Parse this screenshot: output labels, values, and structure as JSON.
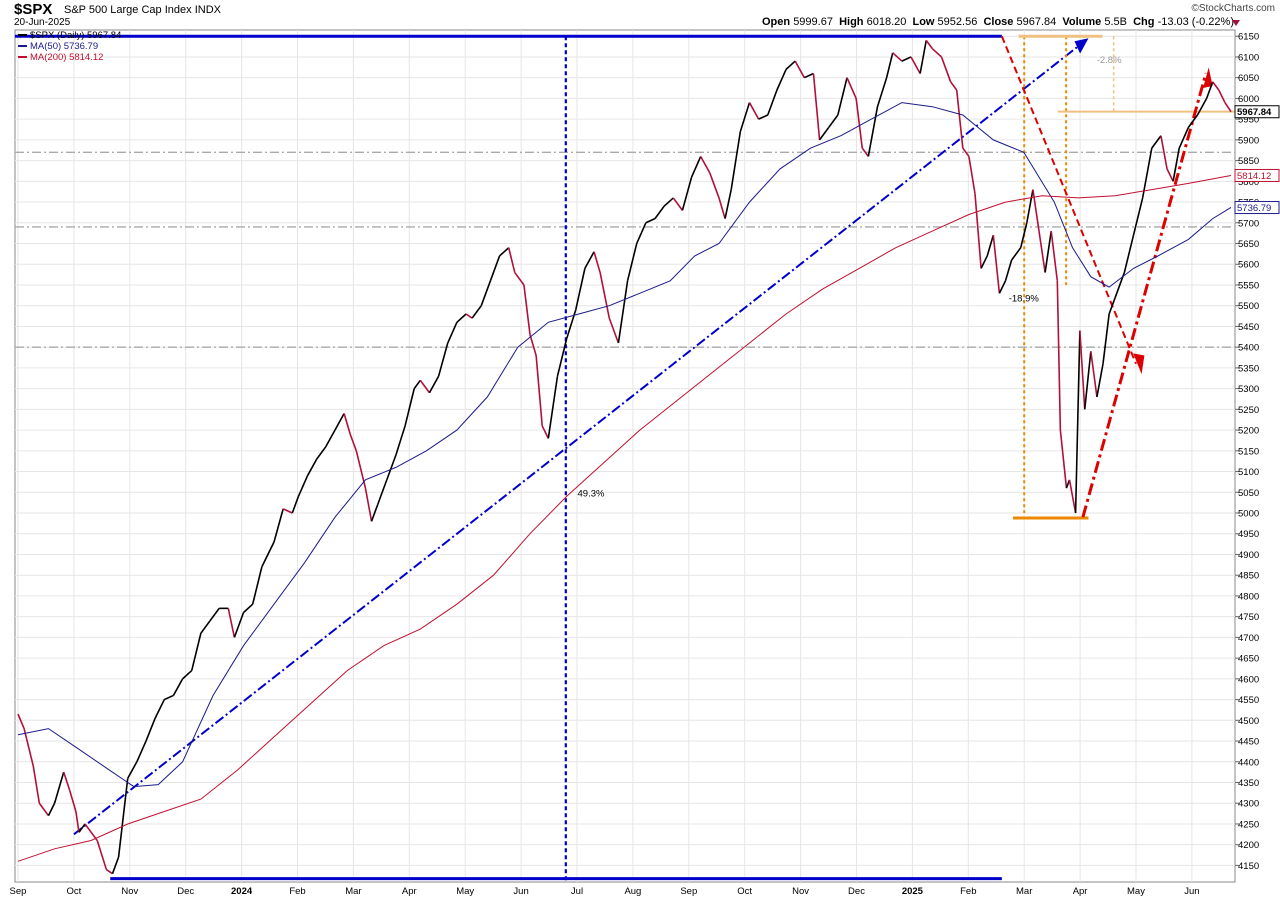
{
  "header": {
    "symbol": "$SPX",
    "name": "S&P 500 Large Cap Index",
    "exchange": "INDX",
    "date": "20-Jun-2025",
    "brand": "©StockCharts.com",
    "open_label": "Open",
    "open": "5999.67",
    "high_label": "High",
    "high": "6018.20",
    "low_label": "Low",
    "low": "5952.56",
    "close_label": "Close",
    "close": "5967.84",
    "volume_label": "Volume",
    "volume": "5.5B",
    "chg_label": "Chg",
    "chg": "-13.03 (-0.22%)",
    "chg_icon": "down-triangle-icon"
  },
  "chart_data": {
    "type": "line",
    "title": "$SPX S&P 500 Large Cap Index INDX",
    "ylim": [
      4110,
      6165
    ],
    "y_ticks": [
      4150,
      4200,
      4250,
      4300,
      4350,
      4400,
      4450,
      4500,
      4550,
      4600,
      4650,
      4700,
      4750,
      4800,
      4850,
      4900,
      4950,
      5000,
      5050,
      5100,
      5150,
      5200,
      5250,
      5300,
      5350,
      5400,
      5450,
      5500,
      5550,
      5600,
      5650,
      5700,
      5750,
      5800,
      5850,
      5900,
      5950,
      6000,
      6050,
      6100,
      6150
    ],
    "x_ticks": [
      {
        "label": "Sep",
        "month": 0
      },
      {
        "label": "Oct",
        "month": 1
      },
      {
        "label": "Nov",
        "month": 2
      },
      {
        "label": "Dec",
        "month": 3
      },
      {
        "label": "2024",
        "month": 4,
        "year": true
      },
      {
        "label": "Feb",
        "month": 5
      },
      {
        "label": "Mar",
        "month": 6
      },
      {
        "label": "Apr",
        "month": 7
      },
      {
        "label": "May",
        "month": 8
      },
      {
        "label": "Jun",
        "month": 9
      },
      {
        "label": "Jul",
        "month": 10
      },
      {
        "label": "Aug",
        "month": 11
      },
      {
        "label": "Sep",
        "month": 12
      },
      {
        "label": "Oct",
        "month": 13
      },
      {
        "label": "Nov",
        "month": 14
      },
      {
        "label": "Dec",
        "month": 15
      },
      {
        "label": "2025",
        "month": 16,
        "year": true
      },
      {
        "label": "Feb",
        "month": 17
      },
      {
        "label": "Mar",
        "month": 18
      },
      {
        "label": "Apr",
        "month": 19
      },
      {
        "label": "May",
        "month": 20
      },
      {
        "label": "Jun",
        "month": 21
      }
    ],
    "legend_position": "top-left",
    "series": [
      {
        "name": "$SPX (Daily)",
        "last": "5967.84",
        "color": "#000000",
        "down_color": "#b0103a",
        "points": [
          [
            0,
            4515
          ],
          [
            0.1,
            4480
          ],
          [
            0.25,
            4390
          ],
          [
            0.35,
            4300
          ],
          [
            0.5,
            4270
          ],
          [
            0.6,
            4300
          ],
          [
            0.75,
            4375
          ],
          [
            0.85,
            4330
          ],
          [
            0.95,
            4280
          ],
          [
            1.0,
            4230
          ],
          [
            1.1,
            4250
          ],
          [
            1.3,
            4210
          ],
          [
            1.45,
            4140
          ],
          [
            1.55,
            4130
          ],
          [
            1.65,
            4170
          ],
          [
            1.8,
            4360
          ],
          [
            1.95,
            4400
          ],
          [
            2.1,
            4450
          ],
          [
            2.25,
            4505
          ],
          [
            2.4,
            4550
          ],
          [
            2.55,
            4560
          ],
          [
            2.7,
            4600
          ],
          [
            2.85,
            4620
          ],
          [
            3.0,
            4710
          ],
          [
            3.15,
            4740
          ],
          [
            3.3,
            4770
          ],
          [
            3.45,
            4770
          ],
          [
            3.55,
            4700
          ],
          [
            3.7,
            4760
          ],
          [
            3.85,
            4780
          ],
          [
            4.0,
            4870
          ],
          [
            4.2,
            4930
          ],
          [
            4.35,
            5010
          ],
          [
            4.5,
            5000
          ],
          [
            4.6,
            5040
          ],
          [
            4.75,
            5090
          ],
          [
            4.9,
            5130
          ],
          [
            5.05,
            5160
          ],
          [
            5.2,
            5200
          ],
          [
            5.35,
            5240
          ],
          [
            5.45,
            5190
          ],
          [
            5.55,
            5150
          ],
          [
            5.7,
            5060
          ],
          [
            5.8,
            4980
          ],
          [
            5.9,
            5020
          ],
          [
            6.05,
            5080
          ],
          [
            6.2,
            5140
          ],
          [
            6.35,
            5210
          ],
          [
            6.5,
            5300
          ],
          [
            6.6,
            5320
          ],
          [
            6.75,
            5290
          ],
          [
            6.9,
            5330
          ],
          [
            7.05,
            5410
          ],
          [
            7.2,
            5460
          ],
          [
            7.35,
            5480
          ],
          [
            7.45,
            5470
          ],
          [
            7.6,
            5500
          ],
          [
            7.75,
            5560
          ],
          [
            7.9,
            5620
          ],
          [
            8.05,
            5640
          ],
          [
            8.15,
            5580
          ],
          [
            8.3,
            5550
          ],
          [
            8.4,
            5430
          ],
          [
            8.5,
            5380
          ],
          [
            8.6,
            5210
          ],
          [
            8.7,
            5180
          ],
          [
            8.85,
            5330
          ],
          [
            9.0,
            5420
          ],
          [
            9.15,
            5490
          ],
          [
            9.3,
            5590
          ],
          [
            9.45,
            5630
          ],
          [
            9.55,
            5580
          ],
          [
            9.7,
            5470
          ],
          [
            9.85,
            5410
          ],
          [
            10.0,
            5560
          ],
          [
            10.15,
            5650
          ],
          [
            10.3,
            5700
          ],
          [
            10.45,
            5710
          ],
          [
            10.6,
            5740
          ],
          [
            10.75,
            5760
          ],
          [
            10.9,
            5730
          ],
          [
            11.05,
            5810
          ],
          [
            11.2,
            5860
          ],
          [
            11.35,
            5820
          ],
          [
            11.5,
            5760
          ],
          [
            11.6,
            5710
          ],
          [
            11.7,
            5780
          ],
          [
            11.85,
            5920
          ],
          [
            12.0,
            5990
          ],
          [
            12.15,
            5950
          ],
          [
            12.3,
            5960
          ],
          [
            12.45,
            6020
          ],
          [
            12.6,
            6070
          ],
          [
            12.75,
            6090
          ],
          [
            12.9,
            6050
          ],
          [
            13.05,
            6060
          ],
          [
            13.15,
            5900
          ],
          [
            13.3,
            5930
          ],
          [
            13.45,
            5960
          ],
          [
            13.6,
            6050
          ],
          [
            13.75,
            6000
          ],
          [
            13.85,
            5880
          ],
          [
            13.95,
            5860
          ],
          [
            14.1,
            5980
          ],
          [
            14.25,
            6050
          ],
          [
            14.35,
            6110
          ],
          [
            14.5,
            6090
          ],
          [
            14.65,
            6100
          ],
          [
            14.8,
            6060
          ],
          [
            14.9,
            6140
          ],
          [
            15.0,
            6120
          ],
          [
            15.15,
            6100
          ],
          [
            15.3,
            6040
          ],
          [
            15.4,
            6020
          ],
          [
            15.5,
            5880
          ],
          [
            15.6,
            5860
          ],
          [
            15.7,
            5770
          ],
          [
            15.8,
            5590
          ],
          [
            15.9,
            5620
          ],
          [
            16.0,
            5670
          ],
          [
            16.1,
            5530
          ],
          [
            16.2,
            5560
          ],
          [
            16.3,
            5610
          ],
          [
            16.45,
            5640
          ],
          [
            16.55,
            5700
          ],
          [
            16.65,
            5780
          ],
          [
            16.75,
            5680
          ],
          [
            16.85,
            5580
          ],
          [
            16.95,
            5680
          ],
          [
            17.05,
            5560
          ],
          [
            17.1,
            5200
          ],
          [
            17.2,
            5060
          ],
          [
            17.25,
            5080
          ],
          [
            17.35,
            5000
          ],
          [
            17.42,
            5440
          ],
          [
            17.5,
            5250
          ],
          [
            17.6,
            5390
          ],
          [
            17.7,
            5280
          ],
          [
            17.8,
            5360
          ],
          [
            17.9,
            5480
          ],
          [
            18.0,
            5520
          ],
          [
            18.15,
            5580
          ],
          [
            18.3,
            5670
          ],
          [
            18.45,
            5760
          ],
          [
            18.6,
            5880
          ],
          [
            18.75,
            5910
          ],
          [
            18.85,
            5830
          ],
          [
            18.95,
            5800
          ],
          [
            19.05,
            5880
          ],
          [
            19.2,
            5930
          ],
          [
            19.35,
            5960
          ],
          [
            19.5,
            6000
          ],
          [
            19.6,
            6040
          ],
          [
            19.7,
            6020
          ],
          [
            19.8,
            5990
          ],
          [
            19.9,
            5968
          ]
        ]
      },
      {
        "name": "MA(50)",
        "last": "5736.79",
        "color": "#1a1a8a",
        "points": [
          [
            0,
            4465
          ],
          [
            0.5,
            4480
          ],
          [
            1.0,
            4430
          ],
          [
            1.5,
            4380
          ],
          [
            1.9,
            4340
          ],
          [
            2.3,
            4345
          ],
          [
            2.7,
            4400
          ],
          [
            3.2,
            4560
          ],
          [
            3.7,
            4680
          ],
          [
            4.2,
            4780
          ],
          [
            4.7,
            4880
          ],
          [
            5.2,
            4990
          ],
          [
            5.7,
            5080
          ],
          [
            6.2,
            5110
          ],
          [
            6.7,
            5150
          ],
          [
            7.2,
            5200
          ],
          [
            7.7,
            5280
          ],
          [
            8.2,
            5400
          ],
          [
            8.7,
            5460
          ],
          [
            9.2,
            5480
          ],
          [
            9.7,
            5500
          ],
          [
            10.2,
            5530
          ],
          [
            10.7,
            5560
          ],
          [
            11.1,
            5620
          ],
          [
            11.5,
            5650
          ],
          [
            12.0,
            5750
          ],
          [
            12.5,
            5830
          ],
          [
            13.0,
            5880
          ],
          [
            13.5,
            5910
          ],
          [
            14.0,
            5950
          ],
          [
            14.5,
            5990
          ],
          [
            15.0,
            5980
          ],
          [
            15.5,
            5960
          ],
          [
            16.0,
            5900
          ],
          [
            16.5,
            5870
          ],
          [
            17.0,
            5750
          ],
          [
            17.3,
            5640
          ],
          [
            17.6,
            5570
          ],
          [
            17.9,
            5545
          ],
          [
            18.3,
            5590
          ],
          [
            18.7,
            5620
          ],
          [
            19.2,
            5660
          ],
          [
            19.6,
            5710
          ],
          [
            19.9,
            5737
          ]
        ]
      },
      {
        "name": "MA(200)",
        "last": "5814.12",
        "color": "#c01030",
        "points": [
          [
            0,
            4160
          ],
          [
            0.6,
            4190
          ],
          [
            1.2,
            4210
          ],
          [
            1.8,
            4250
          ],
          [
            2.4,
            4280
          ],
          [
            3.0,
            4310
          ],
          [
            3.6,
            4380
          ],
          [
            4.2,
            4460
          ],
          [
            4.8,
            4540
          ],
          [
            5.4,
            4620
          ],
          [
            6.0,
            4680
          ],
          [
            6.6,
            4720
          ],
          [
            7.2,
            4780
          ],
          [
            7.8,
            4850
          ],
          [
            8.4,
            4950
          ],
          [
            9.0,
            5040
          ],
          [
            9.6,
            5120
          ],
          [
            10.2,
            5200
          ],
          [
            10.8,
            5270
          ],
          [
            11.4,
            5340
          ],
          [
            12.0,
            5410
          ],
          [
            12.6,
            5480
          ],
          [
            13.2,
            5540
          ],
          [
            13.8,
            5590
          ],
          [
            14.4,
            5640
          ],
          [
            15.0,
            5680
          ],
          [
            15.6,
            5720
          ],
          [
            16.2,
            5750
          ],
          [
            16.8,
            5765
          ],
          [
            17.4,
            5760
          ],
          [
            18.0,
            5765
          ],
          [
            18.6,
            5780
          ],
          [
            19.2,
            5795
          ],
          [
            19.9,
            5814
          ]
        ]
      }
    ],
    "annotations": [
      {
        "text": "49.3%",
        "x": 9.4,
        "y": 5040
      },
      {
        "text": "-18.9%",
        "x": 16.5,
        "y": 5510
      },
      {
        "text": "-2.8%",
        "x": 17.9,
        "y": 6085
      }
    ],
    "price_labels": [
      "5967.84",
      "5814.12",
      "5736.79"
    ]
  }
}
